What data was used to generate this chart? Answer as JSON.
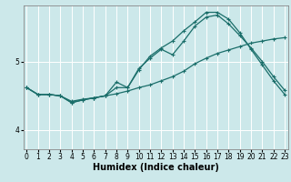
{
  "xlabel": "Humidex (Indice chaleur)",
  "bg_color": "#cce8ea",
  "grid_color": "#ffffff",
  "line_color": "#1a6e6a",
  "x_ticks": [
    0,
    1,
    2,
    3,
    4,
    5,
    6,
    7,
    8,
    9,
    10,
    11,
    12,
    13,
    14,
    15,
    16,
    17,
    18,
    19,
    20,
    21,
    22,
    23
  ],
  "y_ticks": [
    4,
    5
  ],
  "ylim": [
    3.72,
    5.82
  ],
  "xlim": [
    -0.3,
    23.3
  ],
  "line1_x": [
    0,
    1,
    2,
    3,
    4,
    5,
    6,
    7,
    8,
    9,
    10,
    11,
    12,
    13,
    14,
    15,
    16,
    17,
    18,
    19,
    20,
    21,
    22,
    23
  ],
  "line1_y": [
    4.62,
    4.52,
    4.52,
    4.5,
    4.42,
    4.45,
    4.47,
    4.5,
    4.53,
    4.57,
    4.62,
    4.66,
    4.72,
    4.78,
    4.86,
    4.97,
    5.05,
    5.12,
    5.17,
    5.22,
    5.27,
    5.3,
    5.33,
    5.35
  ],
  "line2_x": [
    0,
    1,
    2,
    3,
    4,
    5,
    6,
    7,
    8,
    9,
    10,
    11,
    12,
    13,
    14,
    15,
    16,
    17,
    18,
    19,
    20,
    21,
    22,
    23
  ],
  "line2_y": [
    4.62,
    4.52,
    4.52,
    4.5,
    4.4,
    4.44,
    4.47,
    4.5,
    4.7,
    4.62,
    4.9,
    5.05,
    5.18,
    5.1,
    5.3,
    5.52,
    5.65,
    5.68,
    5.55,
    5.38,
    5.2,
    5.0,
    4.78,
    4.58
  ],
  "line3_x": [
    0,
    1,
    2,
    3,
    4,
    5,
    6,
    7,
    8,
    9,
    10,
    11,
    12,
    13,
    14,
    15,
    16,
    17,
    18,
    19,
    20,
    21,
    22,
    23
  ],
  "line3_y": [
    4.62,
    4.52,
    4.52,
    4.5,
    4.4,
    4.44,
    4.47,
    4.5,
    4.62,
    4.62,
    4.88,
    5.08,
    5.2,
    5.3,
    5.45,
    5.58,
    5.72,
    5.72,
    5.62,
    5.42,
    5.18,
    4.95,
    4.72,
    4.52
  ],
  "marker": "+",
  "markersize": 3,
  "linewidth": 0.9,
  "xlabel_fontsize": 7,
  "tick_fontsize": 5.5
}
